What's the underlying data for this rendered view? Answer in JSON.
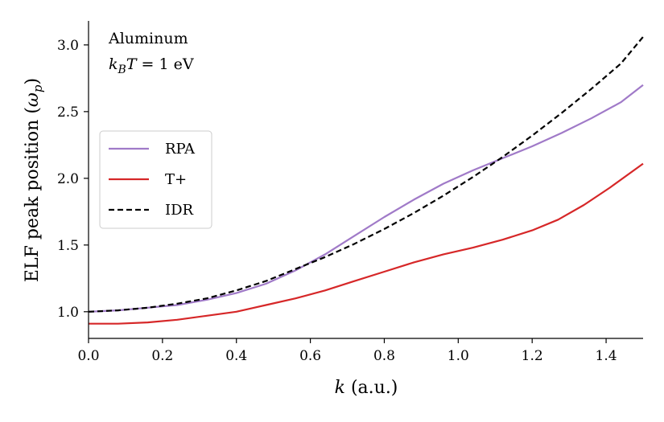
{
  "chart_data": {
    "type": "line",
    "title": "",
    "xlabel": "k (a.u.)",
    "xlabel_var": "k",
    "xlabel_unit": "(a.u.)",
    "ylabel": "ELF peak position (ω_p)",
    "ylabel_text": "ELF peak position (",
    "ylabel_symbol": "ω",
    "ylabel_subscript": "p",
    "ylabel_close": ")",
    "xlim": [
      0.0,
      1.5
    ],
    "ylim": [
      0.8,
      3.18
    ],
    "xticks": [
      0.0,
      0.2,
      0.4,
      0.6,
      0.8,
      1.0,
      1.2,
      1.4
    ],
    "xtick_labels": [
      "0.0",
      "0.2",
      "0.4",
      "0.6",
      "0.8",
      "1.0",
      "1.2",
      "1.4"
    ],
    "yticks": [
      1.0,
      1.5,
      2.0,
      2.5,
      3.0
    ],
    "ytick_labels": [
      "1.0",
      "1.5",
      "2.0",
      "2.5",
      "3.0"
    ],
    "grid": false,
    "legend_position": "center-left",
    "annotations": {
      "material": "Aluminum",
      "temp_k": "k",
      "temp_sub": "B",
      "temp_T": "T",
      "temp_value": " = 1 eV"
    },
    "series": [
      {
        "name": "RPA",
        "color": "#a07ac8",
        "dash": "solid",
        "x": [
          0.0,
          0.08,
          0.16,
          0.24,
          0.32,
          0.4,
          0.48,
          0.56,
          0.64,
          0.72,
          0.8,
          0.88,
          0.96,
          1.04,
          1.12,
          1.2,
          1.28,
          1.36,
          1.44,
          1.5
        ],
        "y": [
          1.0,
          1.01,
          1.03,
          1.05,
          1.09,
          1.14,
          1.21,
          1.31,
          1.43,
          1.57,
          1.71,
          1.84,
          1.96,
          2.06,
          2.15,
          2.24,
          2.34,
          2.45,
          2.57,
          2.7
        ]
      },
      {
        "name": "T+",
        "color": "#d62728",
        "dash": "solid",
        "x": [
          0.0,
          0.08,
          0.16,
          0.24,
          0.32,
          0.4,
          0.48,
          0.56,
          0.64,
          0.72,
          0.8,
          0.88,
          0.96,
          1.04,
          1.12,
          1.2,
          1.27,
          1.34,
          1.41,
          1.5
        ],
        "y": [
          0.91,
          0.91,
          0.92,
          0.94,
          0.97,
          1.0,
          1.05,
          1.1,
          1.16,
          1.23,
          1.3,
          1.37,
          1.43,
          1.48,
          1.54,
          1.61,
          1.69,
          1.8,
          1.93,
          2.11
        ]
      },
      {
        "name": "IDR",
        "color": "#000000",
        "dash": "dashed",
        "x": [
          0.0,
          0.08,
          0.16,
          0.24,
          0.32,
          0.4,
          0.48,
          0.56,
          0.64,
          0.72,
          0.8,
          0.88,
          0.96,
          1.04,
          1.12,
          1.2,
          1.28,
          1.36,
          1.44,
          1.5
        ],
        "y": [
          1.0,
          1.01,
          1.03,
          1.06,
          1.1,
          1.16,
          1.23,
          1.32,
          1.41,
          1.51,
          1.62,
          1.74,
          1.87,
          2.01,
          2.16,
          2.32,
          2.49,
          2.67,
          2.86,
          3.06
        ]
      }
    ]
  }
}
